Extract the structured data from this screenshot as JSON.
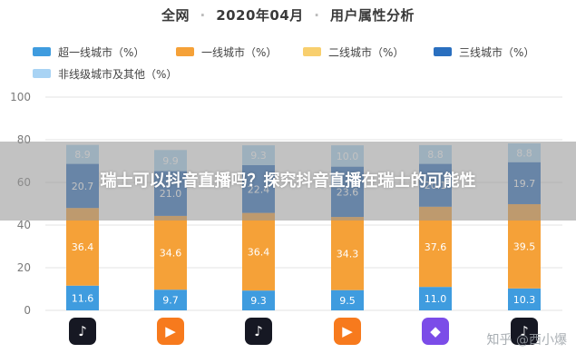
{
  "title": "全网 · 2020年04月 · 用户属性分析",
  "title_parts": [
    "全网",
    "2020年04月",
    "用户属性分析"
  ],
  "overlay_text": "瑞士可以抖音直播吗？探究抖音直播在瑞士的可能性",
  "watermark": "知乎 @西小爆",
  "colors": {
    "super_first": "#3f9cdf",
    "first": "#f5a138",
    "second": "#f8cf6e",
    "third": "#2a6fbf",
    "non_first": "#a8d3f4"
  },
  "apps": [
    {
      "icon": "douyin-icon",
      "glyph": "♪",
      "bg": "#161823"
    },
    {
      "icon": "kuaishou-icon",
      "glyph": "▶",
      "bg": "#f77a1d"
    },
    {
      "icon": "douyin-variant-icon",
      "glyph": "♪",
      "bg": "#161823"
    },
    {
      "icon": "kuaishou-variant-icon",
      "glyph": "▶",
      "bg": "#f77a1d"
    },
    {
      "icon": "purple-video-app-icon",
      "glyph": "◆",
      "bg": "#7b4ce8"
    },
    {
      "icon": "douyin-lite-icon",
      "glyph": "♪",
      "bg": "#161823"
    }
  ],
  "chart_data": {
    "type": "bar",
    "stacked": true,
    "title": "全网 · 2020年04月 · 用户属性分析",
    "ylim": [
      0,
      100
    ],
    "yticks": [
      0,
      20,
      40,
      60,
      80,
      100
    ],
    "grid": true,
    "legend_position": "top",
    "categories": [
      "",
      "",
      "",
      "",
      "",
      ""
    ],
    "series": [
      {
        "name": "超一线城市（%）",
        "color": "#3f9cdf",
        "values": [
          11.6,
          9.7,
          9.3,
          9.5,
          11.0,
          10.3
        ]
      },
      {
        "name": "一线城市（%）",
        "color": "#f5a138",
        "values": [
          36.4,
          34.6,
          36.4,
          34.3,
          37.6,
          39.5
        ]
      },
      {
        "name": "二线城市（%）",
        "color": "#f8cf6e",
        "values": [
          null,
          null,
          null,
          null,
          null,
          null
        ]
      },
      {
        "name": "三线城市（%）",
        "color": "#2a6fbf",
        "values": [
          20.7,
          21.0,
          22.4,
          23.6,
          20.1,
          19.7
        ]
      },
      {
        "name": "非线级城市及其他（%）",
        "color": "#a8d3f4",
        "values": [
          8.9,
          9.9,
          9.3,
          10.0,
          8.8,
          8.8
        ]
      }
    ]
  }
}
